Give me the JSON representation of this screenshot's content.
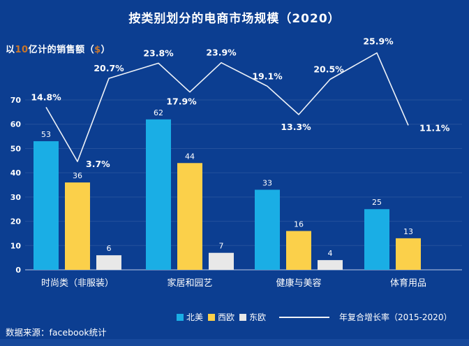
{
  "title": "按类别划分的电商市场规模（2020）",
  "y_axis_label": {
    "part1": "以",
    "num": "10",
    "part2": "亿计的销售额（",
    "cur": "$",
    "part3": "）"
  },
  "source": "数据来源：facebook统计",
  "colors": {
    "background": "#0c3e91",
    "grid": "rgba(255,255,255,0.10)",
    "baseline": "rgba(200,214,238,0.75)",
    "text": "#ffffff",
    "line": "#eef2f8",
    "accent_number": "#c9762b"
  },
  "legend": {
    "items": [
      {
        "label": "北美",
        "type": "swatch",
        "color": "#1aaee5"
      },
      {
        "label": "西欧",
        "type": "swatch",
        "color": "#fbd04a"
      },
      {
        "label": "东欧",
        "type": "swatch",
        "color": "#e8e8e8"
      },
      {
        "label": "年复合增长率（2015-2020）",
        "type": "line",
        "color": "#eef2f8"
      }
    ]
  },
  "chart_data": {
    "type": "bar",
    "title": "按类别划分的电商市场规模（2020）",
    "ylabel": "以10亿计的销售额（$）",
    "categories": [
      "时尚类（非服装）",
      "家居和园艺",
      "健康与美容",
      "体育用品"
    ],
    "series": [
      {
        "name": "北美",
        "color": "#1aaee5",
        "values": [
          53,
          62,
          33,
          25
        ]
      },
      {
        "name": "西欧",
        "color": "#fbd04a",
        "values": [
          36,
          44,
          16,
          13
        ]
      },
      {
        "name": "东欧",
        "color": "#e8e8e8",
        "values": [
          6,
          7,
          4,
          null
        ]
      }
    ],
    "line_series": {
      "name": "年复合增长率（2015-2020）",
      "type": "line",
      "unit": "%",
      "values": [
        14.8,
        3.7,
        20.7,
        23.8,
        17.9,
        23.9,
        19.1,
        13.3,
        20.5,
        25.9,
        11.1
      ]
    },
    "y_ticks": [
      0,
      10,
      20,
      30,
      40,
      50,
      60,
      70
    ],
    "ylim": [
      0,
      70
    ],
    "grid": true,
    "legend_position": "bottom"
  }
}
